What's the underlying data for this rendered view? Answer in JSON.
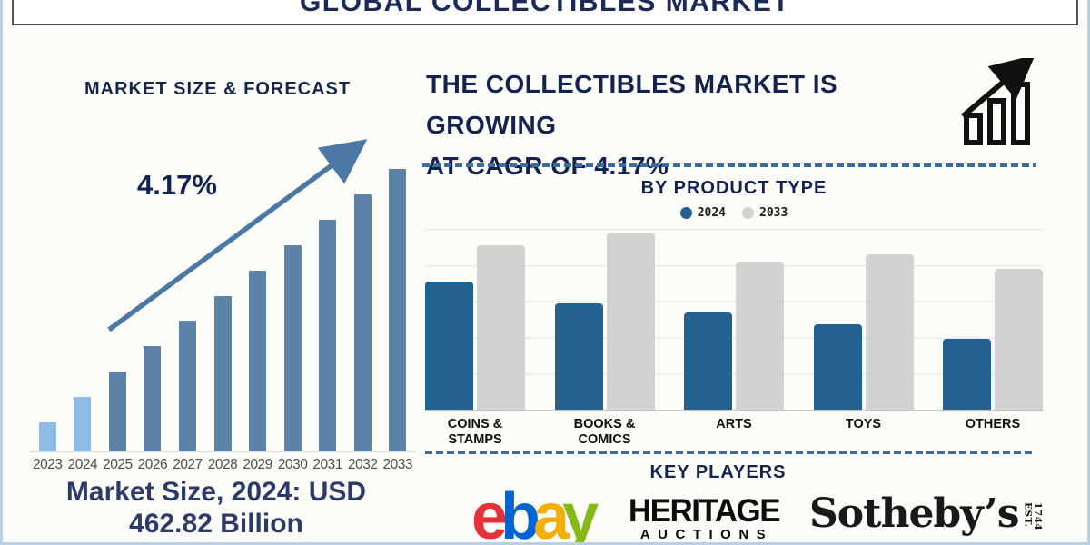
{
  "page_title": "GLOBAL COLLECTIBLES MARKET",
  "left_panel": {
    "chart_title": "MARKET SIZE & FORECAST",
    "growth_label": "4.17%",
    "market_size_line1": "Market Size, 2024: USD",
    "market_size_line2": "462.82 Billion"
  },
  "right_panel": {
    "headline_line1": "THE COLLECTIBLES MARKET IS GROWING",
    "headline_line2": "AT CAGR OF 4.17%",
    "by_product_title": "BY PRODUCT TYPE",
    "key_players_title": "KEY PLAYERS",
    "players": {
      "ebay": {
        "name": "ebay",
        "letters": [
          {
            "char": "e",
            "color": "#e53238"
          },
          {
            "char": "b",
            "color": "#0064d2"
          },
          {
            "char": "a",
            "color": "#f5af02"
          },
          {
            "char": "y",
            "color": "#86b817"
          }
        ]
      },
      "heritage": {
        "line1": "HERITAGE",
        "line2": "AUCTIONS"
      },
      "sothebys": {
        "name": "Sotheby’s",
        "est": "EST.",
        "year": "1744"
      }
    }
  },
  "colors": {
    "navy_text": "#13234e",
    "light_bar": "#8fbce6",
    "dark_bar": "#5d82a7",
    "blue_2024": "#236191",
    "gray_2033": "#d2d2d2",
    "trend_arrow": "#4c78a6",
    "dashed_divider": "#3e6b9d",
    "outer_border": "#b9cfe2"
  },
  "chart_data": [
    {
      "type": "bar",
      "title": "MARKET SIZE & FORECAST",
      "categories": [
        "2023",
        "2024",
        "2025",
        "2026",
        "2027",
        "2028",
        "2029",
        "2030",
        "2031",
        "2032",
        "2033"
      ],
      "values_relative": [
        10,
        19,
        28,
        37,
        46,
        55,
        64,
        73,
        82,
        91,
        100
      ],
      "bar_colors": [
        "#8fbce6",
        "#8fbce6",
        "#5d82a7",
        "#5d82a7",
        "#5d82a7",
        "#5d82a7",
        "#5d82a7",
        "#5d82a7",
        "#5d82a7",
        "#5d82a7",
        "#5d82a7"
      ],
      "annotation": "4.17%",
      "xlabel": "",
      "ylabel": "",
      "y_axis_labels_visible": false,
      "note": "Stylized forecast bars rising linearly 2023-2033; Market Size, 2024: USD 462.82 Billion; CAGR 4.17%",
      "legend_position": "none",
      "grid": false
    },
    {
      "type": "bar",
      "title": "BY PRODUCT TYPE",
      "categories": [
        [
          "COINS &",
          "STAMPS"
        ],
        [
          "BOOKS &",
          "COMICS"
        ],
        [
          "ARTS"
        ],
        [
          "TOYS"
        ],
        [
          "OTHERS"
        ]
      ],
      "series": [
        {
          "name": "2024",
          "color": "#236191",
          "values_relative": [
            71,
            59,
            54,
            47,
            39
          ]
        },
        {
          "name": "2033",
          "color": "#d2d2d2",
          "values_relative": [
            91,
            98,
            82,
            86,
            78
          ]
        }
      ],
      "xlabel": "",
      "ylabel": "",
      "y_axis_labels_visible": false,
      "ylim_relative": [
        0,
        100
      ],
      "legend_position": "top",
      "grid": true,
      "note": "Grouped bars, no numeric axis labels shown; 2033 exceeds 2024 in every category"
    }
  ]
}
